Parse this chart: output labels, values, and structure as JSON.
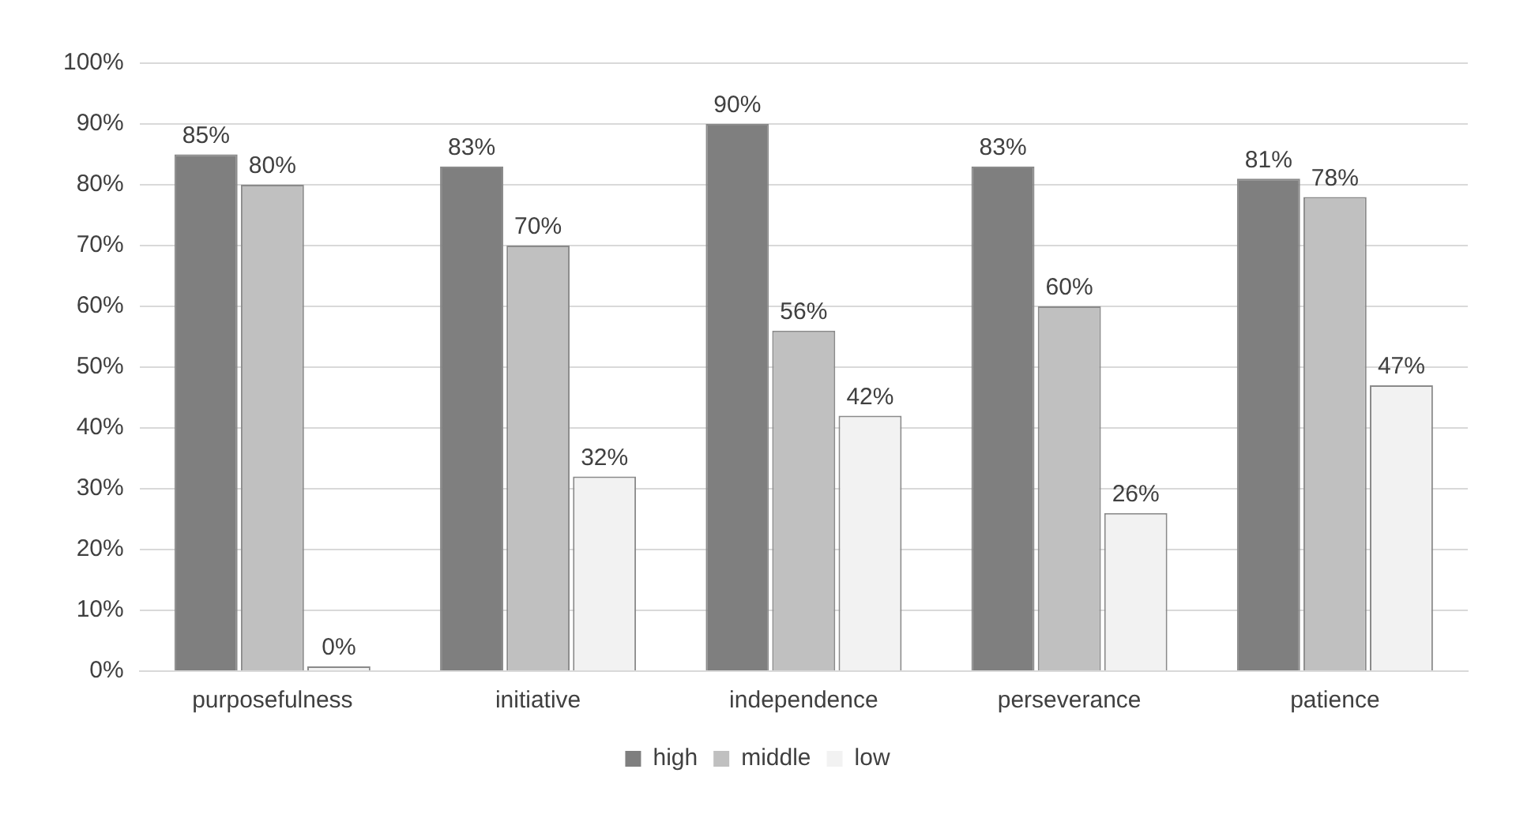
{
  "chart_data": {
    "type": "bar",
    "categories": [
      "purposefulness",
      "initiative",
      "independence",
      "perseverance",
      "patience"
    ],
    "series": [
      {
        "name": "high",
        "color": "#7f7f7f",
        "values": [
          85,
          83,
          90,
          83,
          81
        ],
        "value_labels": [
          "85%",
          "83%",
          "90%",
          "83%",
          "81%"
        ]
      },
      {
        "name": "middle",
        "color": "#c0c0c0",
        "values": [
          80,
          70,
          56,
          60,
          78
        ],
        "value_labels": [
          "80%",
          "70%",
          "56%",
          "60%",
          "78%"
        ]
      },
      {
        "name": "low",
        "color": "#f2f2f2",
        "values": [
          0,
          32,
          42,
          26,
          47
        ],
        "value_labels": [
          "0%",
          "32%",
          "42%",
          "26%",
          "47%"
        ]
      }
    ],
    "ylim": [
      0,
      100
    ],
    "yticks": [
      {
        "value": 0,
        "label": "0%"
      },
      {
        "value": 10,
        "label": "10%"
      },
      {
        "value": 20,
        "label": "20%"
      },
      {
        "value": 30,
        "label": "30%"
      },
      {
        "value": 40,
        "label": "40%"
      },
      {
        "value": 50,
        "label": "50%"
      },
      {
        "value": 60,
        "label": "60%"
      },
      {
        "value": 70,
        "label": "70%"
      },
      {
        "value": 80,
        "label": "80%"
      },
      {
        "value": 90,
        "label": "90%"
      },
      {
        "value": 100,
        "label": "100%"
      }
    ],
    "grid": "y",
    "legend": "bottom"
  }
}
